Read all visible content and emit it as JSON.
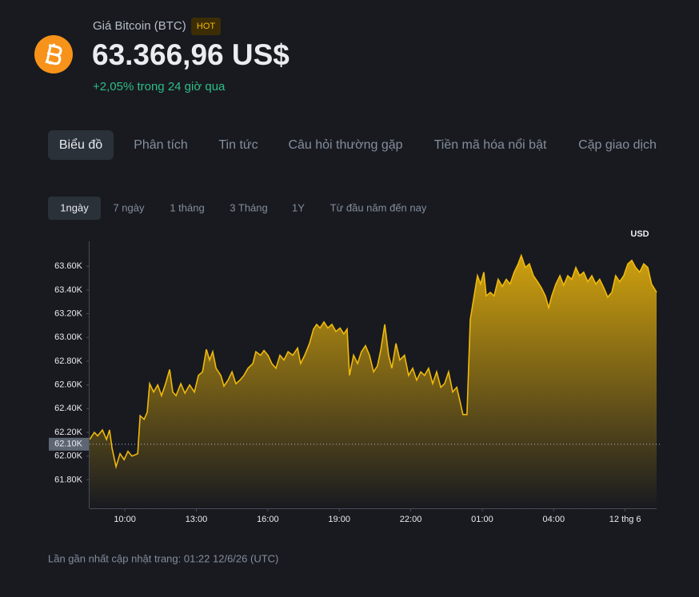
{
  "header": {
    "title": "Giá Bitcoin (BTC)",
    "badge": "HOT",
    "price": "63.366,96 US$",
    "change": "+2,05% trong 24 giờ qua"
  },
  "tabs": [
    "Biểu đồ",
    "Phân tích",
    "Tin tức",
    "Câu hỏi thường gặp",
    "Tiền mã hóa nổi bật",
    "Cặp giao dịch"
  ],
  "active_tab": 0,
  "ranges": [
    "1ngày",
    "7 ngày",
    "1 tháng",
    "3 Tháng",
    "1Y",
    "Từ đầu năm đến nay"
  ],
  "active_range": 0,
  "chart_data": {
    "type": "area",
    "unit": "USD",
    "color": "#f0b90b",
    "x": [
      8.52,
      8.72,
      8.86,
      9.06,
      9.23,
      9.36,
      9.46,
      9.63,
      9.8,
      9.97,
      10.13,
      10.3,
      10.54,
      10.64,
      10.81,
      10.94,
      11.04,
      11.21,
      11.38,
      11.54,
      11.71,
      11.88,
      12.01,
      12.15,
      12.35,
      12.52,
      12.72,
      12.92,
      13.09,
      13.26,
      13.42,
      13.56,
      13.69,
      13.83,
      14.03,
      14.16,
      14.33,
      14.5,
      14.66,
      14.83,
      15,
      15.17,
      15.37,
      15.5,
      15.7,
      15.84,
      16.01,
      16.17,
      16.34,
      16.51,
      16.68,
      16.85,
      17.05,
      17.25,
      17.38,
      17.55,
      17.75,
      17.92,
      18.05,
      18.19,
      18.36,
      18.52,
      18.69,
      18.86,
      19.03,
      19.19,
      19.33,
      19.43,
      19.6,
      19.77,
      19.93,
      20.1,
      20.27,
      20.44,
      20.6,
      20.74,
      20.91,
      21.07,
      21.21,
      21.38,
      21.54,
      21.74,
      21.91,
      22.08,
      22.25,
      22.42,
      22.58,
      22.75,
      22.92,
      23.09,
      23.26,
      23.42,
      23.59,
      23.76,
      23.93,
      24.06,
      24.19,
      24.36,
      24.5,
      24.66,
      24.8,
      24.93,
      25.07,
      25.17,
      25.34,
      25.5,
      25.67,
      25.84,
      26.01,
      26.17,
      26.34,
      26.51,
      26.64,
      26.81,
      26.98,
      27.15,
      27.32,
      27.48,
      27.65,
      27.79,
      27.92,
      28.09,
      28.26,
      28.42,
      28.59,
      28.76,
      28.93,
      29.09,
      29.26,
      29.43,
      29.6,
      29.77,
      29.93,
      30.1,
      30.27,
      30.44,
      30.6,
      30.77,
      30.94,
      31.11,
      31.28,
      31.44,
      31.61,
      31.78,
      31.95,
      32.11,
      32.32
    ],
    "values": [
      62140,
      62200,
      62170,
      62220,
      62140,
      62220,
      62070,
      61910,
      62020,
      61970,
      62040,
      62000,
      62020,
      62340,
      62310,
      62370,
      62610,
      62540,
      62600,
      62510,
      62610,
      62730,
      62540,
      62510,
      62610,
      62530,
      62600,
      62540,
      62680,
      62710,
      62900,
      62810,
      62880,
      62740,
      62680,
      62590,
      62640,
      62710,
      62610,
      62640,
      62680,
      62740,
      62780,
      62880,
      62850,
      62890,
      62850,
      62780,
      62740,
      62850,
      62810,
      62880,
      62850,
      62910,
      62780,
      62850,
      62950,
      63070,
      63110,
      63080,
      63130,
      63080,
      63110,
      63050,
      63080,
      63030,
      63070,
      62680,
      62850,
      62780,
      62880,
      62930,
      62850,
      62710,
      62760,
      62890,
      63110,
      62850,
      62740,
      62950,
      62810,
      62850,
      62680,
      62740,
      62640,
      62710,
      62680,
      62740,
      62610,
      62710,
      62580,
      62610,
      62710,
      62540,
      62580,
      62470,
      62350,
      62350,
      63150,
      63350,
      63520,
      63450,
      63550,
      63350,
      63380,
      63350,
      63490,
      63430,
      63490,
      63450,
      63550,
      63620,
      63690,
      63590,
      63620,
      63520,
      63470,
      63420,
      63350,
      63250,
      63350,
      63450,
      63520,
      63440,
      63520,
      63490,
      63590,
      63520,
      63550,
      63470,
      63520,
      63450,
      63490,
      63420,
      63340,
      63380,
      63520,
      63470,
      63520,
      63620,
      63650,
      63590,
      63550,
      63620,
      63590,
      63450,
      63380
    ],
    "xlim": [
      8.52,
      32.32
    ],
    "xticks": [
      {
        "value": 10,
        "label": "10:00"
      },
      {
        "value": 13,
        "label": "13:00"
      },
      {
        "value": 16,
        "label": "16:00"
      },
      {
        "value": 19,
        "label": "19:00"
      },
      {
        "value": 22,
        "label": "22:00"
      },
      {
        "value": 25,
        "label": "01:00"
      },
      {
        "value": 28,
        "label": "04:00"
      },
      {
        "value": 31,
        "label": "12 thg 6"
      }
    ],
    "ylim": [
      61560,
      63810
    ],
    "yticks": [
      {
        "value": 61800,
        "label": "61.80K"
      },
      {
        "value": 62000,
        "label": "62.00K"
      },
      {
        "value": 62200,
        "label": "62.20K"
      },
      {
        "value": 62400,
        "label": "62.40K"
      },
      {
        "value": 62600,
        "label": "62.60K"
      },
      {
        "value": 62800,
        "label": "62.80K"
      },
      {
        "value": 63000,
        "label": "63.00K"
      },
      {
        "value": 63200,
        "label": "63.20K"
      },
      {
        "value": 63400,
        "label": "63.40K"
      },
      {
        "value": 63600,
        "label": "63.60K"
      }
    ],
    "reference": {
      "value": 62100,
      "label": "62.10K"
    }
  },
  "footer": "Lần gần nhất cập nhật trang: 01:22 12/6/26 (UTC)"
}
